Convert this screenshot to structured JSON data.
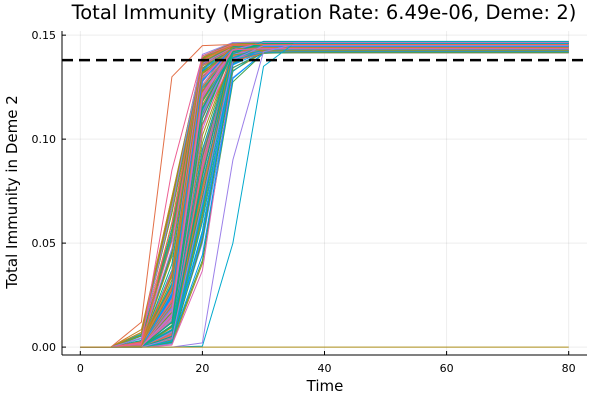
{
  "chart_data": {
    "type": "line",
    "title": "Total Immunity (Migration Rate: 6.49e-06, Deme: 2)",
    "xlabel": "Time",
    "ylabel": "Total Immunity in Deme 2",
    "xlim": [
      -3,
      83
    ],
    "ylim": [
      -0.0038,
      0.152
    ],
    "xticks": [
      0,
      20,
      40,
      60,
      80
    ],
    "xtick_labels": [
      "0",
      "20",
      "40",
      "60",
      "80"
    ],
    "yticks": [
      0.0,
      0.05,
      0.1,
      0.15
    ],
    "ytick_labels": [
      "0.00",
      "0.05",
      "0.10",
      "0.15"
    ],
    "grid": true,
    "legend": "none",
    "reference_line": {
      "y": 0.138,
      "style": "dashed",
      "color": "#000000"
    },
    "t": [
      0,
      5,
      10,
      15,
      20,
      25,
      30,
      35,
      40,
      45,
      50,
      55,
      60,
      65,
      70,
      75,
      80
    ],
    "palette": [
      "#009AFA",
      "#E36F47",
      "#3EA44E",
      "#C371D2",
      "#AC8E18",
      "#00AAAE",
      "#ED5E93",
      "#C68225",
      "#00A98D",
      "#8E971E",
      "#00A9CD",
      "#9B7FE9",
      "#618DF6",
      "#F05F73",
      "#DD65B6",
      "#6C9E33"
    ],
    "series": [
      {
        "color": "#009AFA",
        "values": [
          0,
          0,
          0.0002,
          0.025,
          0.128,
          0.144,
          0.1445,
          0.1445,
          0.1445,
          0.1445,
          0.1445,
          0.1445,
          0.1445,
          0.1445,
          0.1445,
          0.1445,
          0.1445
        ]
      },
      {
        "color": "#E36F47",
        "values": [
          0,
          0,
          0.0005,
          0.06,
          0.138,
          0.145,
          0.145,
          0.145,
          0.145,
          0.145,
          0.145,
          0.145,
          0.145,
          0.145,
          0.145,
          0.145,
          0.145
        ]
      },
      {
        "color": "#3EA44E",
        "values": [
          0,
          0,
          0.0001,
          0.01,
          0.11,
          0.142,
          0.1455,
          0.1455,
          0.1455,
          0.1455,
          0.1455,
          0.1455,
          0.1455,
          0.1455,
          0.1455,
          0.1455,
          0.1455
        ]
      },
      {
        "color": "#C371D2",
        "values": [
          0,
          0,
          0.0001,
          0.015,
          0.12,
          0.143,
          0.1465,
          0.1465,
          0.1465,
          0.1465,
          0.1465,
          0.1465,
          0.1465,
          0.1465,
          0.1465,
          0.1465,
          0.1465
        ]
      },
      {
        "color": "#AC8E18",
        "values": [
          0,
          0,
          0.0003,
          0.035,
          0.132,
          0.144,
          0.1425,
          0.1425,
          0.1425,
          0.1425,
          0.1425,
          0.1425,
          0.1425,
          0.1425,
          0.1425,
          0.1425,
          0.1425
        ]
      },
      {
        "color": "#00AAAE",
        "values": [
          0,
          0,
          0.0001,
          0.008,
          0.095,
          0.141,
          0.147,
          0.147,
          0.147,
          0.147,
          0.147,
          0.147,
          0.147,
          0.147,
          0.147,
          0.147,
          0.147
        ]
      },
      {
        "color": "#ED5E93",
        "values": [
          0,
          0,
          0.002,
          0.085,
          0.14,
          0.1455,
          0.1455,
          0.1455,
          0.1455,
          0.1455,
          0.1455,
          0.1455,
          0.1455,
          0.1455,
          0.1455,
          0.1455,
          0.1455
        ]
      },
      {
        "color": "#C68225",
        "values": [
          0,
          0,
          0.0001,
          0.02,
          0.125,
          0.143,
          0.144,
          0.144,
          0.144,
          0.144,
          0.144,
          0.144,
          0.144,
          0.144,
          0.144,
          0.144,
          0.144
        ]
      },
      {
        "color": "#00A98D",
        "values": [
          0,
          0,
          0.0001,
          0.012,
          0.115,
          0.142,
          0.146,
          0.146,
          0.146,
          0.146,
          0.146,
          0.146,
          0.146,
          0.146,
          0.146,
          0.146,
          0.146
        ]
      },
      {
        "color": "#9B7FE9",
        "values": [
          0,
          0,
          0,
          0.004,
          0.07,
          0.138,
          0.145,
          0.145,
          0.145,
          0.145,
          0.145,
          0.145,
          0.145,
          0.145,
          0.145,
          0.145,
          0.145
        ]
      },
      {
        "color": "#DD65B6",
        "values": [
          0,
          0,
          0.0001,
          0.018,
          0.122,
          0.143,
          0.1435,
          0.1435,
          0.1435,
          0.1435,
          0.1435,
          0.1435,
          0.1435,
          0.1435,
          0.1435,
          0.1435,
          0.1435
        ]
      },
      {
        "color": "#00A9CD",
        "values": [
          0,
          0,
          0,
          0,
          0.0005,
          0.05,
          0.135,
          0.146,
          0.146,
          0.146,
          0.146,
          0.146,
          0.146,
          0.146,
          0.146,
          0.146,
          0.146
        ]
      },
      {
        "color": "#9B7FE9",
        "values": [
          0,
          0,
          0,
          0,
          0.002,
          0.09,
          0.142,
          0.1455,
          0.1455,
          0.1455,
          0.1455,
          0.1455,
          0.1455,
          0.1455,
          0.1455,
          0.1455,
          0.1455
        ]
      },
      {
        "color": "#E36F47",
        "values": [
          0,
          0,
          0.012,
          0.13,
          0.145,
          0.1455,
          0.1455,
          0.1455,
          0.1455,
          0.1455,
          0.1455,
          0.1455,
          0.1455,
          0.1455,
          0.1455,
          0.1455,
          0.1455
        ]
      },
      {
        "color": "#AC8E18",
        "values": [
          0,
          0,
          0,
          0,
          0,
          0,
          0,
          0,
          0,
          0,
          0,
          0,
          0,
          0,
          0,
          0,
          0
        ]
      }
    ]
  }
}
